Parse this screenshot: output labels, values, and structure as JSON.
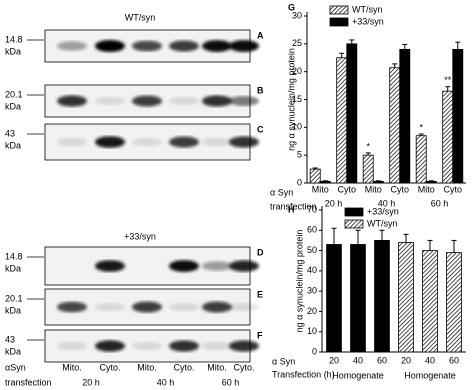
{
  "blots": {
    "top_title": "WT/syn",
    "bottom_title": "+33/syn",
    "panels": [
      "A",
      "B",
      "C",
      "D",
      "E",
      "F"
    ],
    "markers": [
      [
        "14.8",
        "kDa"
      ],
      [
        "20.1",
        "kDa"
      ],
      [
        "43",
        "kDa"
      ],
      [
        "14.8",
        "kDa"
      ],
      [
        "20.1",
        "kDa"
      ],
      [
        "43",
        "kDa"
      ]
    ],
    "lanes": [
      "Mito.",
      "Cyto.",
      "Mito.",
      "Cyto.",
      "Mito.",
      "Cyto."
    ],
    "times": [
      "20 h",
      "40 h",
      "60 h"
    ],
    "xlabel": [
      "αSyn",
      "transfection"
    ]
  },
  "chart_data": [
    {
      "type": "bar",
      "panel": "G",
      "ylabel": "ng α synuclein/mg protein",
      "xlabel": [
        "α Syn",
        "transfection"
      ],
      "categories": [
        "Mito",
        "Cyto",
        "Mito",
        "Cyto",
        "Mito",
        "Cyto"
      ],
      "groups": [
        "20 h",
        "40 h",
        "60 h"
      ],
      "ylim": [
        0,
        30
      ],
      "yticks": [
        0,
        5,
        10,
        15,
        20,
        25,
        30
      ],
      "series": [
        {
          "name": "WT/syn",
          "color": "#000000",
          "pattern": "hatch",
          "values": [
            2.5,
            22.5,
            5,
            20.7,
            8.5,
            16.5
          ],
          "errors": [
            0.2,
            0.8,
            0.4,
            0.7,
            0.3,
            0.8
          ],
          "annotations": [
            null,
            null,
            "*",
            null,
            "*",
            "**"
          ]
        },
        {
          "name": "+33/syn",
          "color": "#000000",
          "pattern": "solid",
          "values": [
            0.3,
            25,
            0.3,
            24,
            0.3,
            24
          ],
          "errors": [
            0.1,
            0.7,
            0.1,
            0.9,
            0.1,
            1.3
          ],
          "annotations": [
            null,
            null,
            null,
            null,
            null,
            null
          ]
        }
      ]
    },
    {
      "type": "bar",
      "panel": "H",
      "ylabel": "ng α synuclein/mg protein",
      "xlabel": [
        "α Syn",
        "Transfection (h)"
      ],
      "categories": [
        "20",
        "40",
        "60",
        "20",
        "40",
        "60"
      ],
      "groups": [
        "Homogenate",
        "Homogenate"
      ],
      "ylim": [
        0,
        70
      ],
      "yticks": [
        0,
        10,
        20,
        30,
        40,
        50,
        60,
        70
      ],
      "series": [
        {
          "name": "+33/syn",
          "color": "#000000",
          "pattern": "solid",
          "values": [
            53,
            53,
            55,
            null,
            null,
            null
          ],
          "errors": [
            8,
            7,
            5,
            null,
            null,
            null
          ]
        },
        {
          "name": "WT/syn",
          "color": "#000000",
          "pattern": "hatch",
          "values": [
            null,
            null,
            null,
            54,
            50,
            49
          ],
          "errors": [
            null,
            null,
            null,
            4,
            5,
            6
          ]
        }
      ]
    }
  ]
}
